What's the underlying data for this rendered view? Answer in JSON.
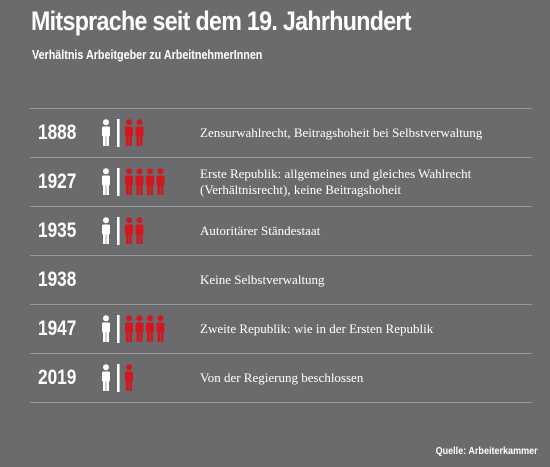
{
  "title": "Mitsprache seit dem 19. Jahrhundert",
  "subtitle": "Verhältnis Arbeitgeber zu ArbeitnehmerInnen",
  "colors": {
    "background": "#6b6b6d",
    "employer": "#ffffff",
    "employee": "#d1171f",
    "divider": "#ffffff"
  },
  "legend_icons": {
    "employer": "person-icon-white",
    "employee": "person-icon-red"
  },
  "rows": [
    {
      "year": "1888",
      "employers": 1,
      "employees": 2,
      "text": "Zensurwahlrecht, Beitragshoheit bei Selbstverwaltung"
    },
    {
      "year": "1927",
      "employers": 1,
      "employees": 4,
      "text": "Erste Republik: allgemeines und gleiches Wahlrecht (Verhältnisrecht), keine Beitragshoheit"
    },
    {
      "year": "1935",
      "employers": 1,
      "employees": 2,
      "text": "Autoritärer Ständestaat"
    },
    {
      "year": "1938",
      "employers": 0,
      "employees": 0,
      "text": "Keine Selbstverwaltung"
    },
    {
      "year": "1947",
      "employers": 1,
      "employees": 4,
      "text": "Zweite Republik: wie in der Ersten Republik"
    },
    {
      "year": "2019",
      "employers": 1,
      "employees": 1,
      "text": "Von der Regierung beschlossen"
    }
  ],
  "source": "Quelle: Arbeiterkammer"
}
